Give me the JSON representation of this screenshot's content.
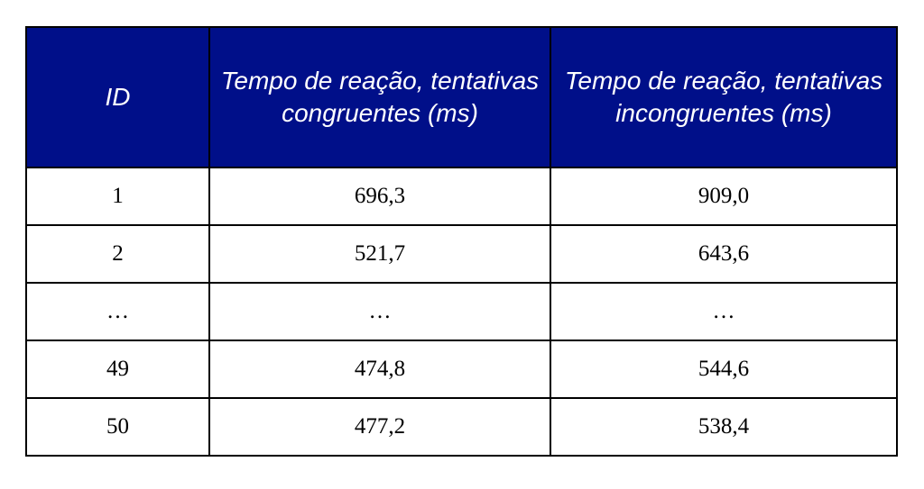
{
  "table": {
    "columns": [
      "ID",
      "Tempo de reação, tentativas congruentes (ms)",
      "Tempo de reação, tentativas incongruentes (ms)"
    ],
    "rows": [
      [
        "1",
        "696,3",
        "909,0"
      ],
      [
        "2",
        "521,7",
        "643,6"
      ],
      [
        "…",
        "…",
        "…"
      ],
      [
        "49",
        "474,8",
        "544,6"
      ],
      [
        "50",
        "477,2",
        "538,4"
      ]
    ]
  },
  "colors": {
    "header_background": "#000f89",
    "header_text": "#ffffff",
    "border": "#000000",
    "cell_background": "#ffffff"
  }
}
